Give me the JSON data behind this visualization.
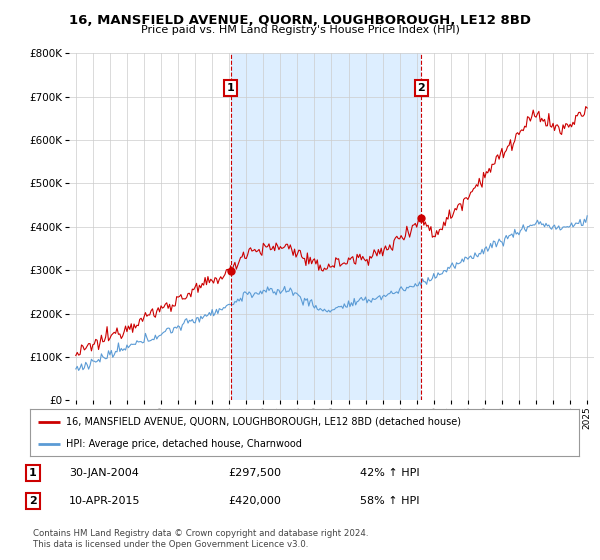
{
  "title": "16, MANSFIELD AVENUE, QUORN, LOUGHBOROUGH, LE12 8BD",
  "subtitle": "Price paid vs. HM Land Registry's House Price Index (HPI)",
  "ylim": [
    0,
    800000
  ],
  "xlim_start": 1994.6,
  "xlim_end": 2025.4,
  "xtick_years": [
    1995,
    1996,
    1997,
    1998,
    1999,
    2000,
    2001,
    2002,
    2003,
    2004,
    2005,
    2006,
    2007,
    2008,
    2009,
    2010,
    2011,
    2012,
    2013,
    2014,
    2015,
    2016,
    2017,
    2018,
    2019,
    2020,
    2021,
    2022,
    2023,
    2024,
    2025
  ],
  "red_line_color": "#cc0000",
  "blue_line_color": "#5b9bd5",
  "shade_color": "#ddeeff",
  "marker1_x": 2004.08,
  "marker1_y": 297500,
  "marker2_x": 2015.28,
  "marker2_y": 420000,
  "legend_label_red": "16, MANSFIELD AVENUE, QUORN, LOUGHBOROUGH, LE12 8BD (detached house)",
  "legend_label_blue": "HPI: Average price, detached house, Charnwood",
  "annotation1_label": "1",
  "annotation2_label": "2",
  "table_row1": [
    "1",
    "30-JAN-2004",
    "£297,500",
    "42% ↑ HPI"
  ],
  "table_row2": [
    "2",
    "10-APR-2015",
    "£420,000",
    "58% ↑ HPI"
  ],
  "footer": "Contains HM Land Registry data © Crown copyright and database right 2024.\nThis data is licensed under the Open Government Licence v3.0.",
  "background_color": "#ffffff",
  "grid_color": "#cccccc"
}
